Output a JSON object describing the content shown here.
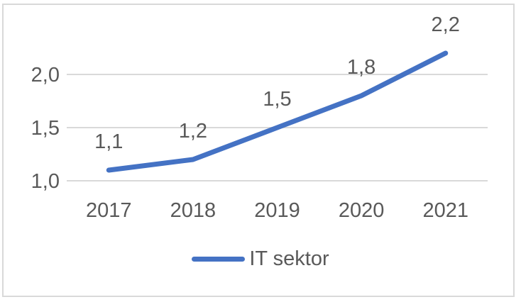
{
  "window": {
    "background": "#FFFFFF",
    "border_color": "#D9D9D9"
  },
  "chart_data": {
    "type": "line",
    "title": "",
    "xlabel": "",
    "ylabel": "",
    "categories": [
      "2017",
      "2018",
      "2019",
      "2020",
      "2021"
    ],
    "series": [
      {
        "name": "IT sektor",
        "color": "#4472C4",
        "values": [
          1.1,
          1.2,
          1.5,
          1.8,
          2.2
        ],
        "data_labels": [
          "1,1",
          "1,2",
          "1,5",
          "1,8",
          "2,2"
        ]
      }
    ],
    "ylim": [
      1.0,
      2.5
    ],
    "y_ticks": [
      {
        "value": 1.0,
        "label": "1,0"
      },
      {
        "value": 1.5,
        "label": "1,5"
      },
      {
        "value": 2.0,
        "label": "2,0"
      }
    ],
    "grid": "horizontal",
    "legend_position": "bottom",
    "colors": {
      "line": "#4472C4",
      "gridline": "#D9D9D9",
      "text": "#595959",
      "border": "#D9D9D9"
    }
  }
}
